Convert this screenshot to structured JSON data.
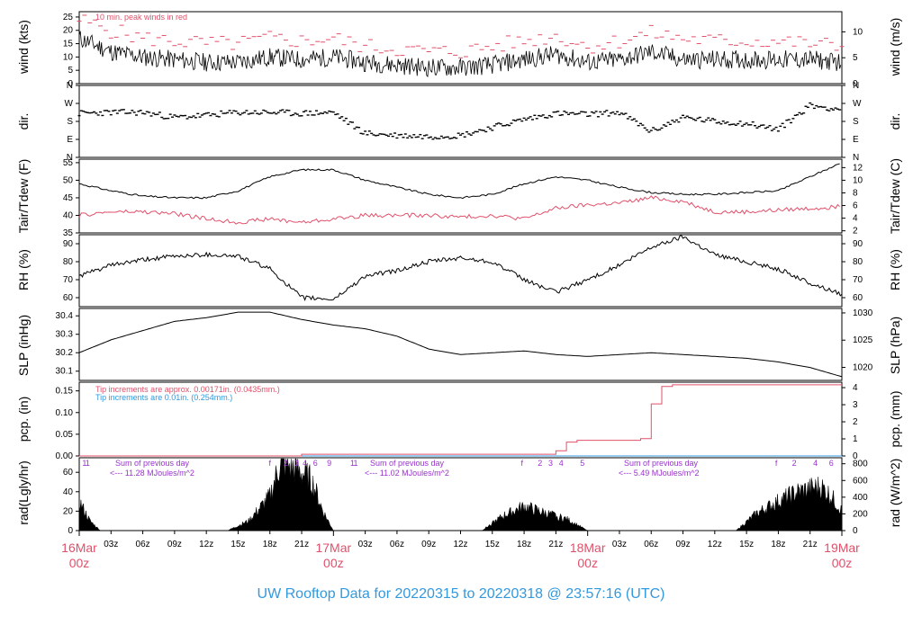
{
  "footer": "UW Rooftop Data for 20220315  to  20220318 @ 23:57:16  (UTC)",
  "colors": {
    "black": "#000000",
    "peak": "#e0506a",
    "blue": "#3399dd",
    "purple": "#9933cc"
  },
  "chart_data": [
    {
      "type": "line",
      "name": "wind",
      "ylabel_left": "wind (kts)",
      "ylabel_right": "wind (m/s)",
      "ylim": [
        0,
        27
      ],
      "yticks_left": [
        0,
        5,
        10,
        15,
        20,
        25
      ],
      "yticks_right": [
        0,
        5,
        10
      ],
      "annotation": "10 min. peak winds in red",
      "series": [
        {
          "x": [
            0,
            3,
            6,
            9,
            12,
            15,
            18,
            21,
            24,
            27,
            30,
            33,
            36,
            39,
            42,
            45,
            48,
            51,
            54,
            57,
            60,
            63,
            66,
            69,
            72
          ],
          "values": [
            17,
            12,
            10,
            9,
            8,
            8,
            10,
            9,
            10,
            8,
            7,
            6,
            6,
            7,
            9,
            11,
            8,
            9,
            12,
            9,
            9,
            9,
            9,
            9,
            8
          ]
        },
        {
          "x": [
            0,
            3,
            6,
            9,
            12,
            15,
            18,
            21,
            24,
            27,
            30,
            33,
            36,
            39,
            42,
            45,
            48,
            51,
            54,
            57,
            60,
            63,
            66,
            69,
            72
          ],
          "values": [
            24,
            20,
            17,
            16,
            15,
            15,
            17,
            16,
            17,
            14,
            13,
            12,
            12,
            14,
            16,
            18,
            14,
            16,
            19,
            17,
            16,
            16,
            16,
            15,
            14
          ]
        }
      ]
    },
    {
      "type": "scatter",
      "name": "dir",
      "ylabel_left": "dir.",
      "ylabel_right": "dir.",
      "ylim": [
        0,
        360
      ],
      "yticks_left": [
        "N",
        "E",
        "S",
        "W",
        "N"
      ],
      "yticks_right": [
        "N",
        "E",
        "S",
        "W",
        "N"
      ],
      "series": [
        {
          "x": [
            0,
            3,
            6,
            9,
            12,
            15,
            18,
            21,
            24,
            27,
            30,
            33,
            36,
            39,
            42,
            45,
            48,
            51,
            54,
            57,
            60,
            63,
            66,
            69,
            72
          ],
          "values": [
            220,
            225,
            225,
            200,
            210,
            225,
            225,
            220,
            225,
            120,
            110,
            105,
            110,
            150,
            190,
            220,
            215,
            225,
            130,
            200,
            180,
            170,
            140,
            260,
            240
          ]
        }
      ]
    },
    {
      "type": "line",
      "name": "temp",
      "ylabel_left": "Tair/Tdew (F)",
      "ylabel_right": "Tair/Tdew (C)",
      "ylim": [
        35,
        56
      ],
      "yticks_left": [
        35,
        40,
        45,
        50,
        55
      ],
      "yticks_right": [
        2,
        4,
        6,
        8,
        10,
        12
      ],
      "series": [
        {
          "x": [
            0,
            3,
            6,
            9,
            12,
            15,
            18,
            21,
            24,
            27,
            30,
            33,
            36,
            39,
            42,
            45,
            48,
            51,
            54,
            57,
            60,
            63,
            66,
            69,
            72
          ],
          "values": [
            49,
            47,
            45.5,
            45,
            45,
            47,
            51,
            53,
            53,
            50,
            48,
            46,
            45,
            46,
            49,
            51,
            50,
            48,
            46.5,
            46,
            46,
            46.5,
            47,
            51,
            55
          ]
        },
        {
          "x": [
            0,
            3,
            6,
            9,
            12,
            15,
            18,
            21,
            24,
            27,
            30,
            33,
            36,
            39,
            42,
            45,
            48,
            51,
            54,
            57,
            60,
            63,
            66,
            69,
            72
          ],
          "values": [
            40,
            41,
            41,
            40.5,
            39,
            38,
            39,
            38,
            39,
            40,
            40,
            40,
            39.5,
            40,
            39,
            42,
            43,
            43.5,
            45,
            44,
            41,
            41,
            41.5,
            42,
            42.5
          ]
        }
      ]
    },
    {
      "type": "line",
      "name": "rh",
      "ylabel_left": "RH (%)",
      "ylabel_right": "RH (%)",
      "ylim": [
        55,
        95
      ],
      "yticks_left": [
        60,
        70,
        80,
        90
      ],
      "yticks_right": [
        60,
        70,
        80,
        90
      ],
      "series": [
        {
          "x": [
            0,
            3,
            6,
            9,
            12,
            15,
            18,
            21,
            24,
            27,
            30,
            33,
            36,
            39,
            42,
            45,
            48,
            51,
            54,
            57,
            60,
            63,
            66,
            69,
            72
          ],
          "values": [
            72,
            78,
            81,
            83,
            84,
            83,
            76,
            60,
            59,
            72,
            75,
            80,
            82,
            80,
            70,
            63,
            70,
            78,
            88,
            94,
            84,
            80,
            76,
            68,
            62
          ]
        }
      ]
    },
    {
      "type": "line",
      "name": "slp",
      "ylabel_left": "SLP (inHg)",
      "ylabel_right": "SLP (hPa)",
      "ylim": [
        30.05,
        30.44
      ],
      "yticks_left": [
        30.1,
        30.2,
        30.3,
        30.4
      ],
      "yticks_right": [
        1020,
        1025,
        1030
      ],
      "series": [
        {
          "x": [
            0,
            3,
            6,
            9,
            12,
            15,
            18,
            21,
            24,
            27,
            30,
            33,
            36,
            39,
            42,
            45,
            48,
            51,
            54,
            57,
            60,
            63,
            66,
            69,
            72
          ],
          "values": [
            30.2,
            30.27,
            30.32,
            30.37,
            30.39,
            30.42,
            30.42,
            30.38,
            30.35,
            30.33,
            30.29,
            30.22,
            30.19,
            30.2,
            30.21,
            30.19,
            30.18,
            30.19,
            30.2,
            30.19,
            30.18,
            30.17,
            30.15,
            30.12,
            30.07
          ]
        }
      ]
    },
    {
      "type": "line",
      "name": "pcp",
      "ylabel_left": "pcp. (in)",
      "ylabel_right": "pcp. (mm)",
      "ylim": [
        0,
        0.17
      ],
      "yticks_left": [
        0.0,
        0.05,
        0.1,
        0.15
      ],
      "yticks_right": [
        0,
        1,
        2,
        3,
        4
      ],
      "annotations": [
        "Tip increments are approx. 0.00171in. (0.0435mm.)",
        "Tip increments are 0.01in. (0.254mm.)"
      ],
      "series": [
        {
          "x": [
            0,
            21,
            21,
            44,
            45,
            46,
            47,
            53,
            54,
            55,
            56,
            72
          ],
          "values": [
            0,
            0,
            0.004,
            0.004,
            0.012,
            0.032,
            0.036,
            0.04,
            0.12,
            0.16,
            0.164,
            0.164
          ]
        }
      ]
    },
    {
      "type": "area",
      "name": "rad",
      "ylabel_left": "rad(Lgly/hr)",
      "ylabel_right": "rad (W/m^2)",
      "ylim": [
        0,
        75
      ],
      "yticks_left": [
        0,
        20,
        40,
        60
      ],
      "yticks_right": [
        0,
        200,
        400,
        600,
        800
      ],
      "day_notes": [
        {
          "top": "Sum of previous day",
          "bottom": "<--- 11.28 MJoules/m^2"
        },
        {
          "top": "Sum of previous day",
          "bottom": "<--- 11.02 MJoules/m^2"
        },
        {
          "top": "Sum of previous day",
          "bottom": "<--- 5.49 MJoules/m^2"
        }
      ],
      "hour_marks": [
        "1",
        "1",
        "f",
        "2",
        "3",
        "4",
        "6",
        "9",
        "1",
        "1",
        "f",
        "2",
        "3",
        "4",
        "5",
        "f",
        "2",
        "4",
        "6"
      ],
      "series": [
        {
          "x": [
            0,
            1,
            2,
            14,
            16,
            18,
            19,
            20,
            21,
            22,
            23,
            24,
            38,
            40,
            42,
            44,
            46,
            48,
            62,
            64,
            66,
            68,
            70,
            71,
            72
          ],
          "values": [
            30,
            10,
            0,
            0,
            10,
            35,
            70,
            65,
            60,
            50,
            20,
            0,
            0,
            15,
            25,
            18,
            12,
            0,
            0,
            18,
            30,
            40,
            45,
            35,
            20
          ]
        }
      ]
    }
  ],
  "x_axis": {
    "ticks": [
      "03z",
      "06z",
      "09z",
      "12z",
      "15z",
      "18z",
      "21z",
      "03z",
      "06z",
      "09z",
      "12z",
      "15z",
      "18z",
      "21z",
      "03z",
      "06z",
      "09z",
      "12z",
      "15z",
      "18z",
      "21z"
    ],
    "dates": [
      {
        "top": "16Mar",
        "bottom": "00z"
      },
      {
        "top": "17Mar",
        "bottom": "00z"
      },
      {
        "top": "18Mar",
        "bottom": "00z"
      },
      {
        "top": "19Mar",
        "bottom": "00z"
      }
    ]
  }
}
